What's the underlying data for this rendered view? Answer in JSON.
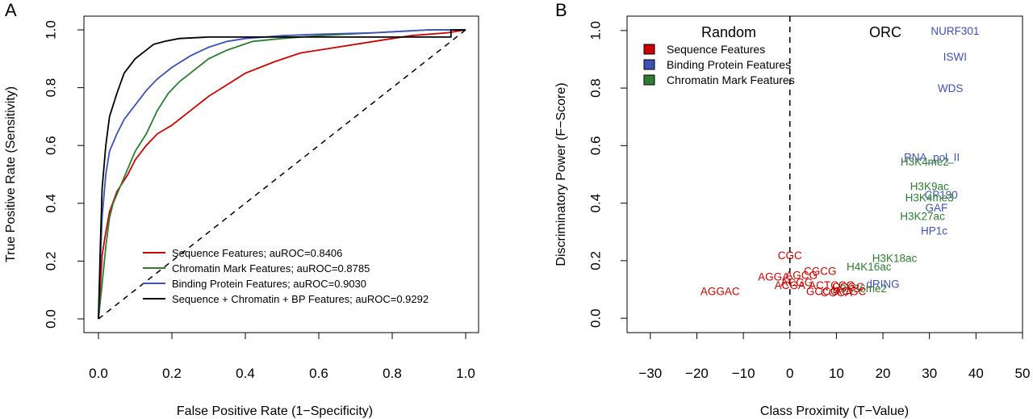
{
  "chart_data": [
    {
      "type": "line",
      "panel_label": "A",
      "xlabel": "False Positive Rate (1−Specificity)",
      "ylabel": "True Positive Rate (Sensitivity)",
      "xlim": [
        0,
        1
      ],
      "ylim": [
        0,
        1
      ],
      "xticks": [
        "0.0",
        "0.2",
        "0.4",
        "0.6",
        "0.8",
        "1.0"
      ],
      "yticks": [
        "0.0",
        "0.2",
        "0.4",
        "0.6",
        "0.8",
        "1.0"
      ],
      "legend_position": "bottom-right",
      "diagonal": true,
      "series": [
        {
          "name": "Sequence Features; auROC=0.8406",
          "color": "#cc0000",
          "x": [
            0,
            0.01,
            0.02,
            0.03,
            0.05,
            0.08,
            0.1,
            0.13,
            0.16,
            0.2,
            0.25,
            0.3,
            0.35,
            0.4,
            0.48,
            0.55,
            0.65,
            0.75,
            0.85,
            0.95,
            1.0
          ],
          "y": [
            0,
            0.22,
            0.3,
            0.37,
            0.44,
            0.5,
            0.55,
            0.6,
            0.64,
            0.67,
            0.72,
            0.77,
            0.81,
            0.85,
            0.89,
            0.92,
            0.94,
            0.96,
            0.98,
            0.99,
            1.0
          ]
        },
        {
          "name": "Chromatin Mark Features; auROC=0.8785",
          "color": "#2e7d32",
          "x": [
            0,
            0.01,
            0.02,
            0.03,
            0.04,
            0.06,
            0.08,
            0.1,
            0.13,
            0.16,
            0.19,
            0.22,
            0.26,
            0.3,
            0.35,
            0.42,
            0.5,
            0.6,
            0.75,
            0.9,
            1.0
          ],
          "y": [
            0,
            0.12,
            0.25,
            0.35,
            0.4,
            0.46,
            0.52,
            0.58,
            0.64,
            0.72,
            0.78,
            0.82,
            0.86,
            0.9,
            0.93,
            0.96,
            0.97,
            0.98,
            0.99,
            1.0,
            1.0
          ]
        },
        {
          "name": "Binding Protein Features; auROC=0.9030",
          "color": "#3f51b5",
          "x": [
            0,
            0.005,
            0.01,
            0.02,
            0.03,
            0.05,
            0.07,
            0.1,
            0.13,
            0.16,
            0.2,
            0.25,
            0.3,
            0.35,
            0.4,
            0.5,
            0.6,
            0.75,
            0.9,
            1.0
          ],
          "y": [
            0,
            0.2,
            0.35,
            0.5,
            0.58,
            0.64,
            0.69,
            0.74,
            0.79,
            0.83,
            0.87,
            0.91,
            0.94,
            0.96,
            0.97,
            0.98,
            0.985,
            0.99,
            1.0,
            1.0
          ]
        },
        {
          "name": "Sequence + Chromatin + BP Features; auROC=0.9292",
          "color": "#000000",
          "x": [
            0,
            0.005,
            0.01,
            0.02,
            0.03,
            0.05,
            0.07,
            0.1,
            0.13,
            0.15,
            0.18,
            0.22,
            0.3,
            0.4,
            0.5,
            0.6,
            0.96,
            0.96,
            1.0
          ],
          "y": [
            0,
            0.25,
            0.45,
            0.6,
            0.7,
            0.78,
            0.85,
            0.9,
            0.93,
            0.95,
            0.96,
            0.97,
            0.975,
            0.975,
            0.975,
            0.975,
            0.975,
            1.0,
            1.0
          ]
        }
      ]
    },
    {
      "type": "scatter",
      "panel_label": "B",
      "xlabel": "Class Proximity (T−Value)",
      "ylabel": "Discriminatory Power (F−Score)",
      "xlim": [
        -35,
        50
      ],
      "ylim": [
        -0.05,
        1.05
      ],
      "xticks": [
        "−30",
        "−20",
        "−10",
        "0",
        "10",
        "20",
        "30",
        "40",
        "50"
      ],
      "yticks": [
        "0.0",
        "0.2",
        "0.4",
        "0.6",
        "0.8",
        "1.0"
      ],
      "region_labels": {
        "left": "Random",
        "right": "ORC"
      },
      "divider_x": 0,
      "legend_position": "top-left",
      "legend": [
        {
          "name": "Sequence Features",
          "color": "#cc0000"
        },
        {
          "name": "Binding Protein Features",
          "color": "#3f51b5"
        },
        {
          "name": "Chromatin Mark Features",
          "color": "#2e7d32"
        }
      ],
      "points": [
        {
          "label": "NURF301",
          "x": 35.5,
          "y": 1.0,
          "group": 1
        },
        {
          "label": "ISWI",
          "x": 35.5,
          "y": 0.91,
          "group": 1
        },
        {
          "label": "WDS",
          "x": 34.5,
          "y": 0.8,
          "group": 1
        },
        {
          "label": "RNA_pol_II",
          "x": 30.5,
          "y": 0.56,
          "group": 1
        },
        {
          "label": "H3K4me2",
          "x": 29.0,
          "y": 0.545,
          "group": 2
        },
        {
          "label": "H3K9ac",
          "x": 30.0,
          "y": 0.46,
          "group": 2
        },
        {
          "label": "CP190",
          "x": 32.5,
          "y": 0.43,
          "group": 1
        },
        {
          "label": "H3K4me3",
          "x": 30.0,
          "y": 0.42,
          "group": 2
        },
        {
          "label": "GAF",
          "x": 31.5,
          "y": 0.385,
          "group": 1
        },
        {
          "label": "H3K27ac",
          "x": 28.5,
          "y": 0.355,
          "group": 2
        },
        {
          "label": "HP1c",
          "x": 31.0,
          "y": 0.305,
          "group": 1
        },
        {
          "label": "H3K18ac",
          "x": 22.5,
          "y": 0.21,
          "group": 2
        },
        {
          "label": "H4K16ac",
          "x": 17.0,
          "y": 0.18,
          "group": 2
        },
        {
          "label": "dRING",
          "x": 20.0,
          "y": 0.12,
          "group": 1
        },
        {
          "label": "H3K36me2",
          "x": 15.0,
          "y": 0.105,
          "group": 2
        },
        {
          "label": "CGC",
          "x": 0.0,
          "y": 0.22,
          "group": 0
        },
        {
          "label": "CGCG",
          "x": 6.5,
          "y": 0.165,
          "group": 0
        },
        {
          "label": "AGGA",
          "x": -3.5,
          "y": 0.145,
          "group": 0
        },
        {
          "label": "AGCG",
          "x": 2.5,
          "y": 0.15,
          "group": 0
        },
        {
          "label": "ACGG",
          "x": 1.5,
          "y": 0.125,
          "group": 0
        },
        {
          "label": "AGGAC",
          "x": -15.0,
          "y": 0.095,
          "group": 0
        },
        {
          "label": "ACTCCG",
          "x": 9.0,
          "y": 0.115,
          "group": 0
        },
        {
          "label": "CCGC",
          "x": 12.5,
          "y": 0.11,
          "group": 0
        },
        {
          "label": "ACGA",
          "x": 0.0,
          "y": 0.115,
          "group": 0
        },
        {
          "label": "GCCG",
          "x": 7.0,
          "y": 0.095,
          "group": 0
        },
        {
          "label": "CGCA",
          "x": 10.0,
          "y": 0.09,
          "group": 0
        },
        {
          "label": "ACGC",
          "x": 13.0,
          "y": 0.095,
          "group": 0
        }
      ]
    }
  ]
}
